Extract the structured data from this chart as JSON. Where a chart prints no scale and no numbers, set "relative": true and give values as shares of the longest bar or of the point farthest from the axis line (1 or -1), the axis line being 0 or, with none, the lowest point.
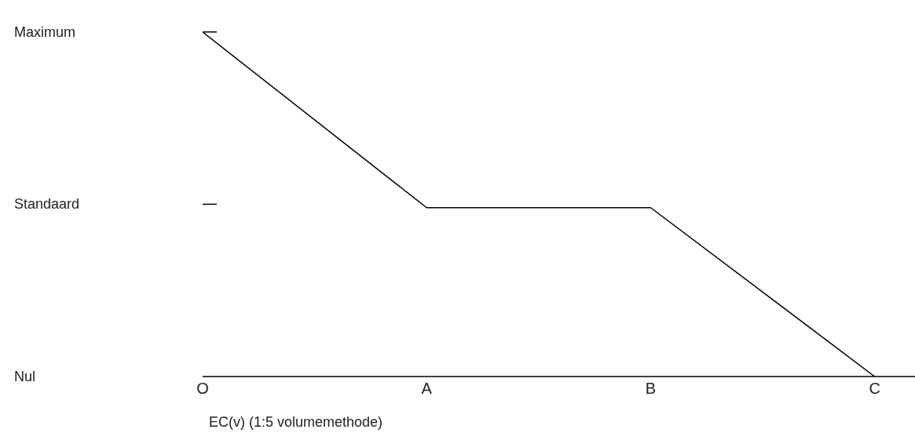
{
  "chart_data": {
    "type": "line",
    "relative": true,
    "xlabel": "EC(v) (1:5 volumemethode)",
    "categories": [
      "O",
      "A",
      "B",
      "C"
    ],
    "series": [
      {
        "color": "#000000",
        "values": [
          1,
          0.49,
          0.49,
          0
        ]
      }
    ],
    "annotations": [
      "Maximum",
      "Standaard",
      "Nul"
    ],
    "marker": "none",
    "line_style": "solid"
  }
}
